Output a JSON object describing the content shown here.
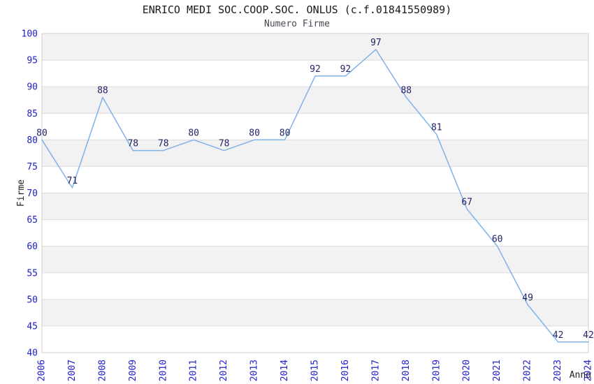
{
  "chart_data": {
    "type": "line",
    "title": "ENRICO MEDI SOC.COOP.SOC. ONLUS (c.f.01841550989)",
    "subtitle": "Numero Firme",
    "xlabel": "Anno",
    "ylabel": "Firme",
    "x": [
      2006,
      2007,
      2008,
      2009,
      2010,
      2011,
      2012,
      2013,
      2014,
      2015,
      2016,
      2017,
      2018,
      2019,
      2020,
      2021,
      2022,
      2023,
      2024
    ],
    "series": [
      {
        "name": "Numero Firme",
        "values": [
          80,
          71,
          88,
          78,
          78,
          80,
          78,
          80,
          80,
          92,
          92,
          97,
          88,
          81,
          67,
          60,
          49,
          42,
          42
        ]
      }
    ],
    "ylim": [
      40,
      100
    ],
    "ytick_step": 5,
    "grid": true,
    "banded_background": true,
    "legend_position": "none",
    "data_labels_shown": true,
    "colors": {
      "line": "#7fb2e8",
      "tick_label": "#2020cc",
      "data_label": "#222266",
      "band": "#f2f2f2",
      "gridline": "#dcdcdc",
      "frame": "#cfcfcf",
      "title": "#1a1a1a",
      "subtitle": "#474756",
      "axis_title": "#222222",
      "background": "#ffffff"
    }
  }
}
